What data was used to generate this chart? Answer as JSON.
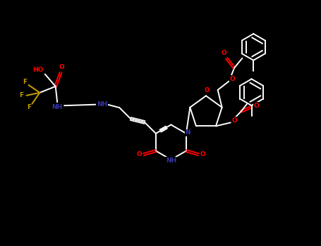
{
  "background": "#000000",
  "bond_color": "#ffffff",
  "bond_width": 1.4,
  "O_color": "#ff0000",
  "N_color": "#3535aa",
  "F_color": "#c8a000",
  "W_color": "#ffffff",
  "fig_width": 4.55,
  "fig_height": 3.5,
  "dpi": 100,
  "xlim": [
    0,
    9.1
  ],
  "ylim": [
    0,
    7.0
  ]
}
